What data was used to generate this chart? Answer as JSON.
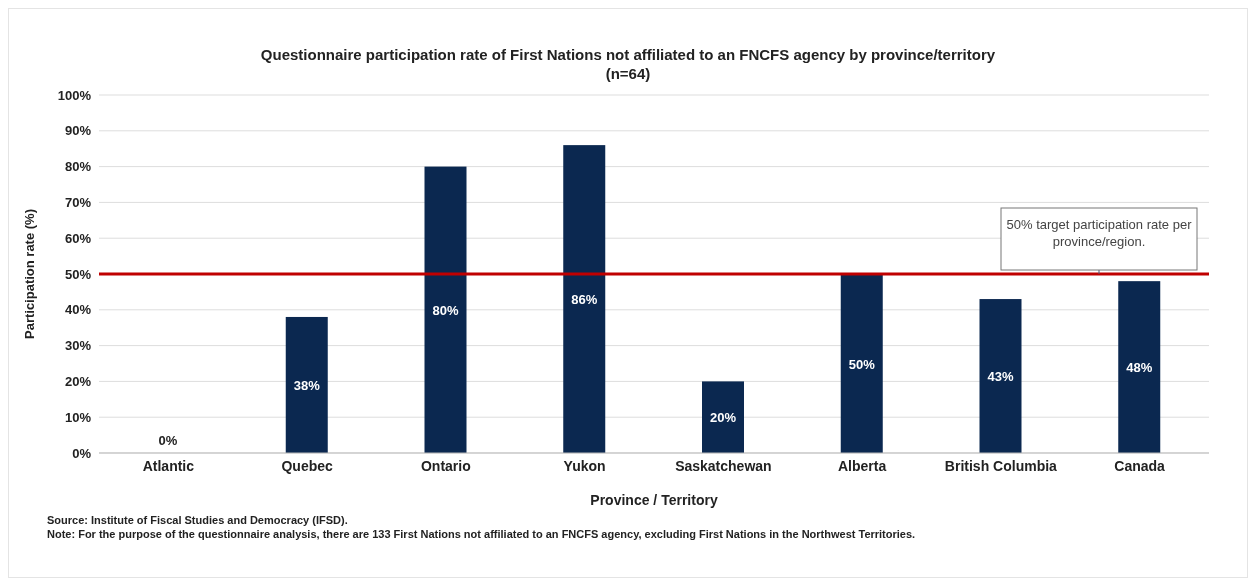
{
  "chart_data": {
    "type": "bar",
    "title": "Questionnaire participation rate of First Nations not affiliated to an FNCFS agency by province/territory",
    "subtitle": "(n=64)",
    "xlabel": "Province / Territory",
    "ylabel": "Participation rate (%)",
    "categories": [
      "Atlantic",
      "Quebec",
      "Ontario",
      "Yukon",
      "Saskatchewan",
      "Alberta",
      "British Columbia",
      "Canada"
    ],
    "values": [
      0,
      38,
      80,
      86,
      20,
      50,
      43,
      48
    ],
    "value_labels": [
      "0%",
      "38%",
      "80%",
      "86%",
      "20%",
      "50%",
      "43%",
      "48%"
    ],
    "color": "#0b2850",
    "ylim": [
      0,
      100
    ],
    "yticks": [
      {
        "value": 0,
        "label": "0%"
      },
      {
        "value": 10,
        "label": "10%"
      },
      {
        "value": 20,
        "label": "20%"
      },
      {
        "value": 30,
        "label": "30%"
      },
      {
        "value": 40,
        "label": "40%"
      },
      {
        "value": 50,
        "label": "50%"
      },
      {
        "value": 60,
        "label": "60%"
      },
      {
        "value": 70,
        "label": "70%"
      },
      {
        "value": 80,
        "label": "80%"
      },
      {
        "value": 90,
        "label": "90%"
      },
      {
        "value": 100,
        "label": "100%"
      }
    ],
    "grid": "y",
    "legend": false,
    "ref_lines": [
      {
        "axis": "y",
        "value": 50,
        "label": "50% target participation rate per province/region.",
        "color": "#c00000"
      }
    ],
    "annotations": [
      "Source:  Institute of Fiscal Studies and Democracy (IFSD).",
      "Note: For the purpose of the questionnaire analysis, there are 133 First Nations not affiliated to an FNCFS agency, excluding First Nations in the Northwest Territories."
    ]
  }
}
